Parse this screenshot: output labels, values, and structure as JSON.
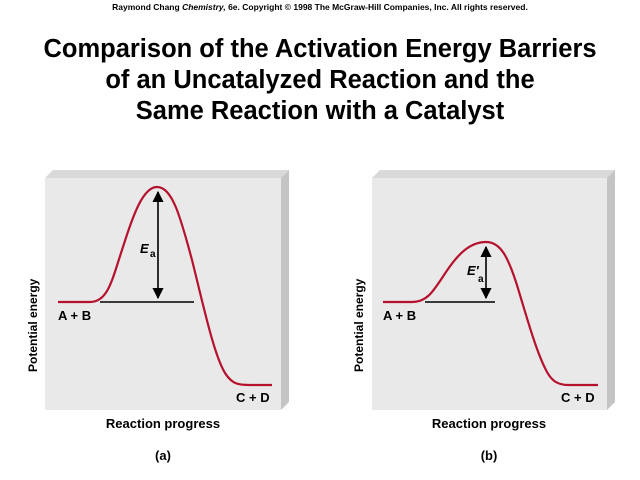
{
  "credit": {
    "author": "Raymond Chang",
    "book": "Chemistry,",
    "rest": "6e.  Copyright © 1998 The McGraw-Hill Companies, Inc. All rights reserved."
  },
  "title_lines": [
    "Comparison of the Activation Energy Barriers",
    "of an Uncatalyzed Reaction and the",
    "Same Reaction with a Catalyst"
  ],
  "colors": {
    "curve": "#b5122e",
    "panel_face": "#e9e9e9",
    "panel_side": "#c4c4c4",
    "panel_top": "#d9d9d9"
  },
  "panels": [
    {
      "caption": "(a)",
      "ylabel": "Potential energy",
      "xlabel": "Reaction progress",
      "reactants": "A + B",
      "products": "C + D",
      "ea_symbol": "E",
      "ea_sub": "a",
      "barrier": "high"
    },
    {
      "caption": "(b)",
      "ylabel": "Potential energy",
      "xlabel": "Reaction progress",
      "reactants": "A + B",
      "products": "C + D",
      "ea_symbol": "E′",
      "ea_sub": "a",
      "barrier": "low"
    }
  ]
}
